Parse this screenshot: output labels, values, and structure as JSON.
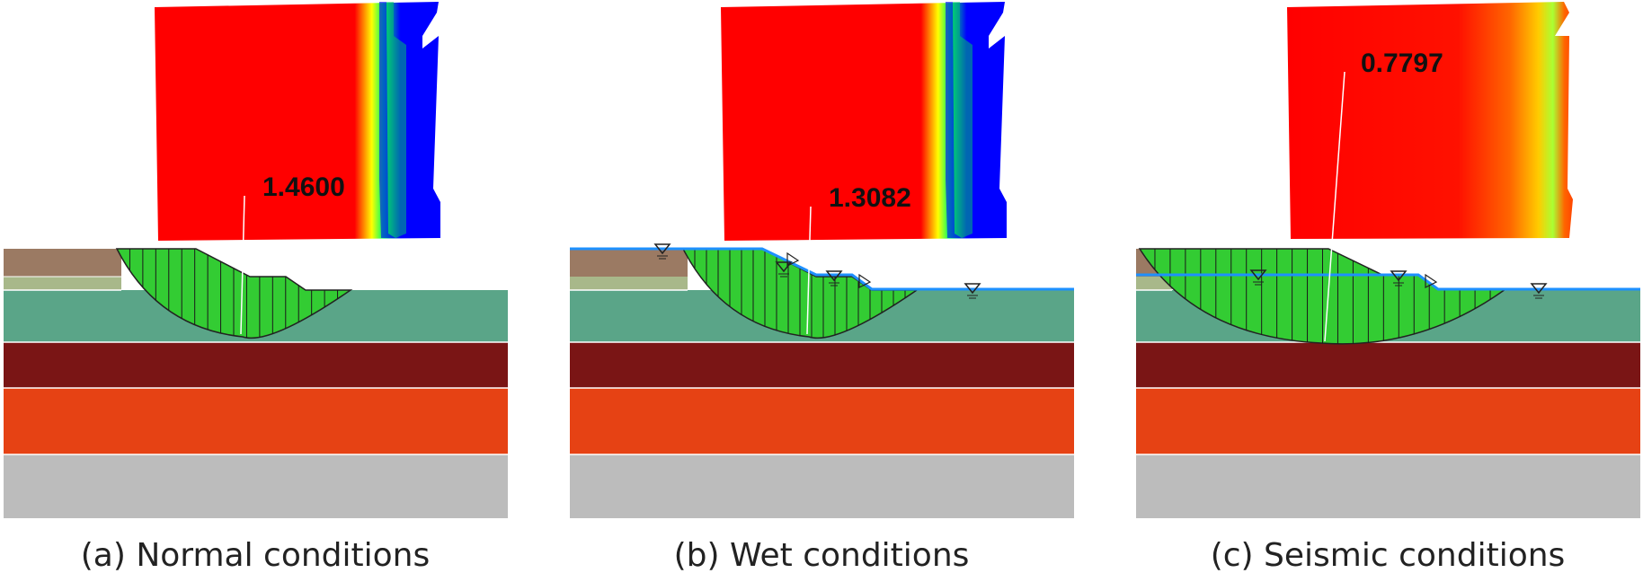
{
  "figure": {
    "panels": [
      {
        "id": "a",
        "caption": "(a) Normal conditions",
        "factor_of_safety": "1.4600",
        "water_table": false,
        "slice_count": 18
      },
      {
        "id": "b",
        "caption": "(b) Wet conditions",
        "factor_of_safety": "1.3082",
        "water_table": true,
        "slice_count": 20
      },
      {
        "id": "c",
        "caption": "(c) Seismic conditions",
        "factor_of_safety": "0.7797",
        "water_table": true,
        "slice_count": 24
      }
    ]
  },
  "colors": {
    "contour_high": "#ff0000",
    "contour_mid": "#ffff00",
    "contour_low": "#0000ff",
    "layer_topsoil": "#9b7a63",
    "layer_thin": "#a8b88a",
    "layer_clay": "#5aa588",
    "layer_dark": "#7a1515",
    "layer_orange": "#e64214",
    "layer_bedrock": "#bcbcbc",
    "failure_mass": "#33cc33",
    "water_line": "#1e90ff"
  }
}
